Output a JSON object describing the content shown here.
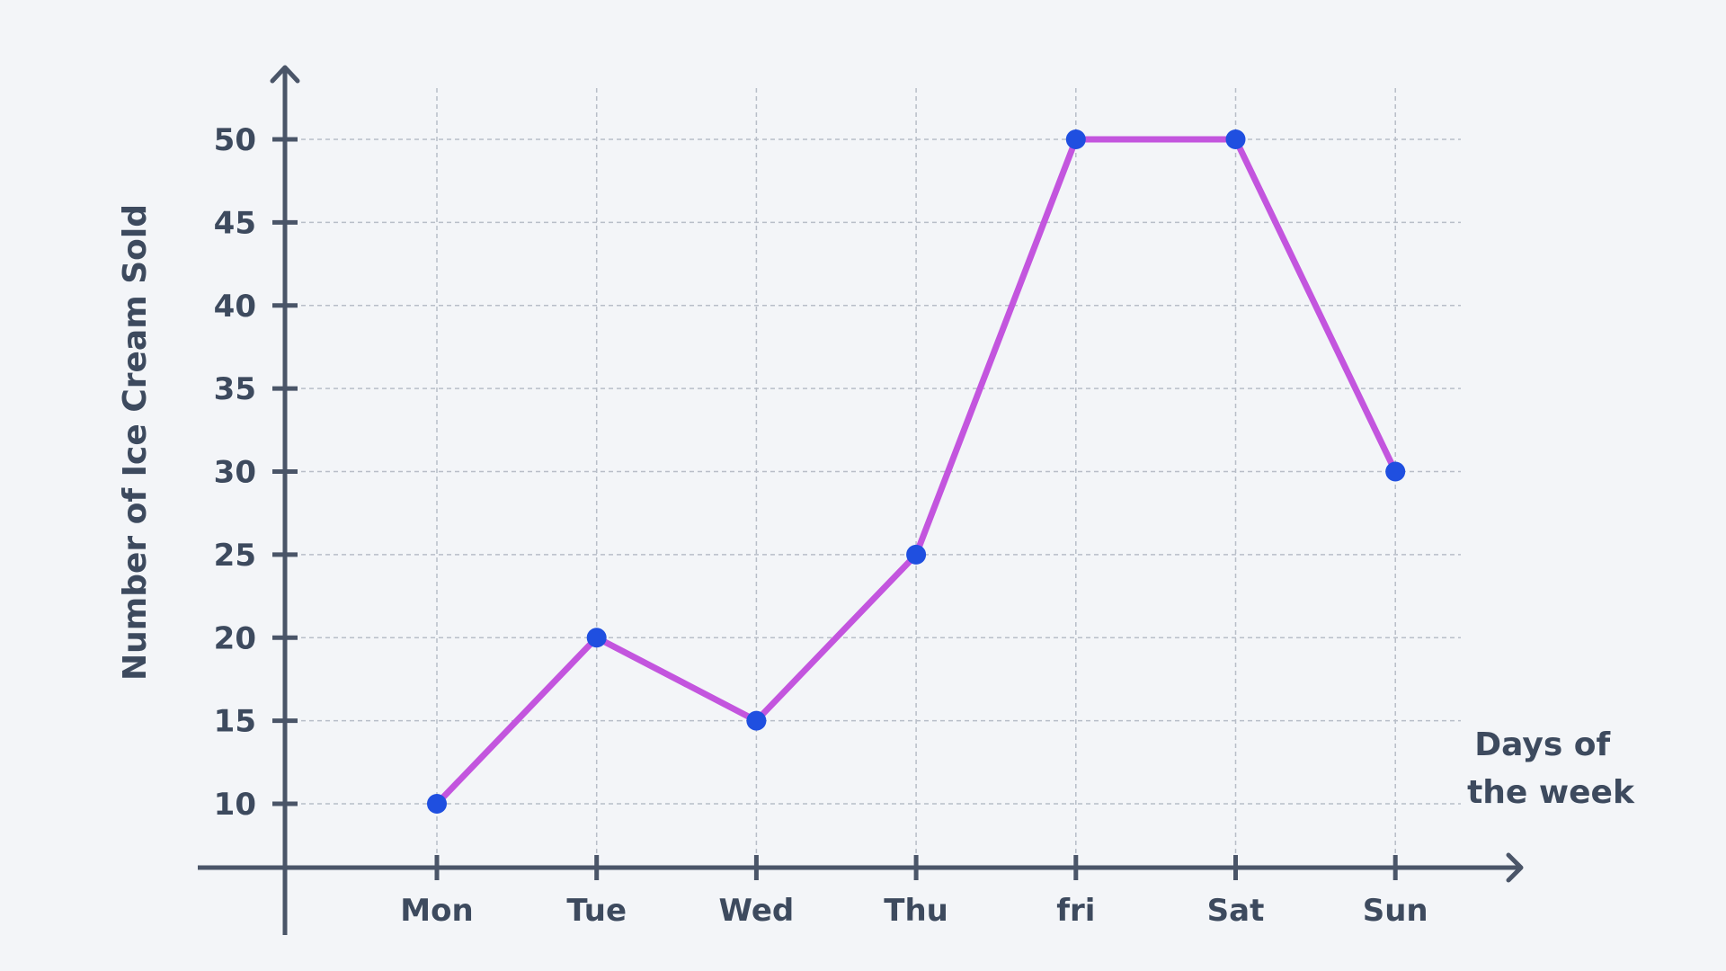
{
  "colors": {
    "background": "#f3f5f8",
    "axis": "#4a5568",
    "grid": "#b8bec8",
    "line": "#c355de",
    "point": "#1f4fe0",
    "text": "#3d4a5e"
  },
  "chart_data": {
    "type": "line",
    "title": "",
    "xlabel": [
      "Days of",
      "the week"
    ],
    "ylabel": "Number of Ice Cream Sold",
    "categories": [
      "Mon",
      "Tue",
      "Wed",
      "Thu",
      "fri",
      "Sat",
      "Sun"
    ],
    "y_ticks": [
      10,
      15,
      20,
      25,
      30,
      35,
      40,
      45,
      50
    ],
    "ylim": [
      6.2,
      54.2
    ],
    "grid": true,
    "legend": "none",
    "series": [
      {
        "values": [
          10,
          20,
          15,
          25,
          50,
          50,
          30
        ]
      }
    ]
  }
}
